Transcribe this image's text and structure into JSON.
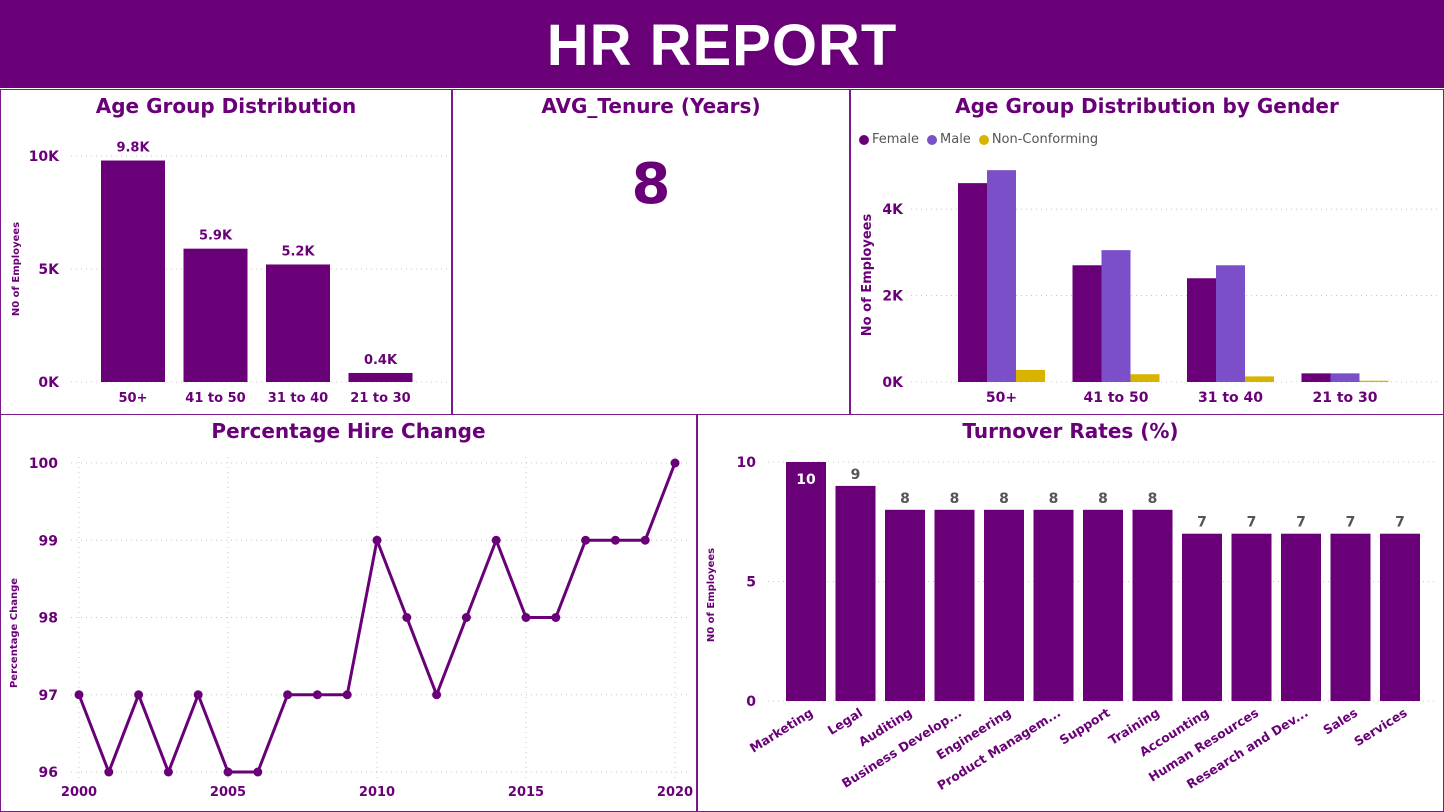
{
  "header": {
    "title": "HR REPORT"
  },
  "colors": {
    "primary": "#6a0078",
    "male": "#7b4fc8",
    "nonconforming": "#d8b400",
    "banner": "#6a0078"
  },
  "kpi": {
    "title": "AVG_Tenure (Years)",
    "value": "8"
  },
  "chart_data": [
    {
      "id": "age_group",
      "type": "bar",
      "title": "Age Group Distribution",
      "ylabel": "N0 of Employees",
      "categories": [
        "50+",
        "41 to 50",
        "31 to 40",
        "21 to 30"
      ],
      "values": [
        9800,
        5900,
        5200,
        400
      ],
      "data_labels": [
        "9.8K",
        "5.9K",
        "5.2K",
        "0.4K"
      ],
      "yticks": [
        "0K",
        "5K",
        "10K"
      ],
      "ylim": [
        0,
        10000
      ],
      "grid": true
    },
    {
      "id": "age_gender",
      "type": "bar",
      "title": "Age Group Distribution by Gender",
      "ylabel": "No of Employees",
      "categories": [
        "50+",
        "41 to 50",
        "31 to 40",
        "21 to 30"
      ],
      "series": [
        {
          "name": "Female",
          "values": [
            4600,
            2700,
            2400,
            200
          ]
        },
        {
          "name": "Male",
          "values": [
            4900,
            3050,
            2700,
            200
          ]
        },
        {
          "name": "Non-Conforming",
          "values": [
            280,
            180,
            130,
            30
          ]
        }
      ],
      "yticks": [
        "0K",
        "2K",
        "4K"
      ],
      "ylim": [
        0,
        4950
      ],
      "legend": "top-left",
      "grid": true
    },
    {
      "id": "hire_change",
      "type": "line",
      "title": "Percentage Hire Change",
      "ylabel": "Percentage Change",
      "x": [
        2000,
        2001,
        2002,
        2003,
        2004,
        2005,
        2006,
        2007,
        2008,
        2009,
        2010,
        2011,
        2012,
        2013,
        2014,
        2015,
        2016,
        2017,
        2018,
        2019,
        2020
      ],
      "values": [
        97,
        96,
        97,
        96,
        97,
        96,
        96,
        97,
        97,
        97,
        99,
        98,
        97,
        98,
        99,
        98,
        98,
        99,
        99,
        99,
        100
      ],
      "xticks": [
        "2000",
        "2005",
        "2010",
        "2015",
        "2020"
      ],
      "yticks": [
        "96",
        "97",
        "98",
        "99",
        "100"
      ],
      "ylim": [
        96,
        100
      ],
      "grid": true
    },
    {
      "id": "turnover",
      "type": "bar",
      "title": "Turnover Rates (%)",
      "ylabel": "N0 of Employees",
      "categories": [
        "Marketing",
        "Legal",
        "Auditing",
        "Business Develop...",
        "Engineering",
        "Product Managem...",
        "Support",
        "Training",
        "Accounting",
        "Human Resources",
        "Research and Dev...",
        "Sales",
        "Services"
      ],
      "values": [
        10,
        9,
        8,
        8,
        8,
        8,
        8,
        8,
        7,
        7,
        7,
        7,
        7
      ],
      "yticks": [
        "0",
        "5",
        "10"
      ],
      "ylim": [
        0,
        10
      ],
      "grid": true
    }
  ]
}
